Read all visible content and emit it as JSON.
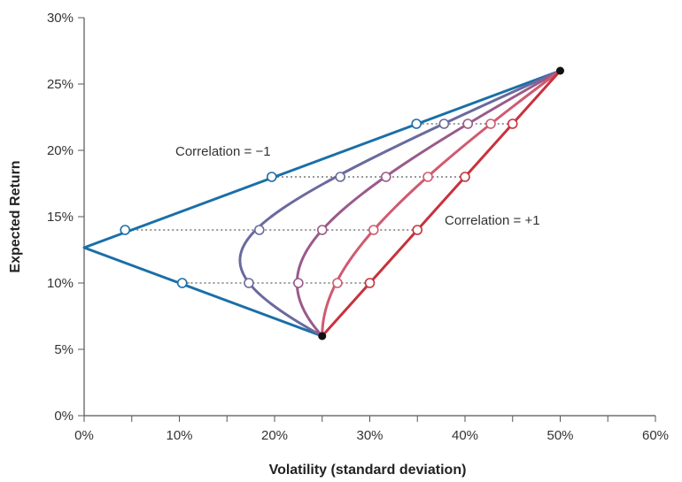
{
  "chart_data": {
    "type": "line",
    "xlabel": "Volatility (standard deviation)",
    "ylabel": "Expected Return",
    "xlim": [
      0,
      60
    ],
    "ylim": [
      0,
      30
    ],
    "x_ticks": [
      0,
      10,
      20,
      30,
      40,
      50,
      60
    ],
    "y_ticks": [
      0,
      5,
      10,
      15,
      20,
      25,
      30
    ],
    "x_tick_labels": [
      "0%",
      "10%",
      "20%",
      "30%",
      "40%",
      "50%",
      "60%"
    ],
    "y_tick_labels": [
      "0%",
      "5%",
      "10%",
      "15%",
      "20%",
      "25%",
      "30%"
    ],
    "grid": false,
    "endpoints": [
      {
        "x": 25,
        "y": 6
      },
      {
        "x": 50,
        "y": 26
      }
    ],
    "series": [
      {
        "correlation": -1,
        "color": "#1a6fa8",
        "points": [
          {
            "x": 25,
            "y": 6
          },
          {
            "x": 0,
            "y": 12.857
          },
          {
            "x": 50,
            "y": 26
          }
        ],
        "markers": [
          {
            "x": 10.3,
            "y": 10
          },
          {
            "x": 4.3,
            "y": 14
          },
          {
            "x": 19.7,
            "y": 18
          },
          {
            "x": 34.9,
            "y": 22
          }
        ]
      },
      {
        "correlation": -0.5,
        "color": "#6a6a9e",
        "markers": [
          {
            "x": 17.3,
            "y": 10
          },
          {
            "x": 18.4,
            "y": 14
          },
          {
            "x": 26.9,
            "y": 18
          },
          {
            "x": 37.8,
            "y": 22
          }
        ]
      },
      {
        "correlation": 0,
        "color": "#9a5a8a",
        "markers": [
          {
            "x": 22.5,
            "y": 10
          },
          {
            "x": 25.0,
            "y": 14
          },
          {
            "x": 31.7,
            "y": 18
          },
          {
            "x": 40.3,
            "y": 22
          }
        ]
      },
      {
        "correlation": 0.5,
        "color": "#d05a70",
        "markers": [
          {
            "x": 26.6,
            "y": 10
          },
          {
            "x": 30.4,
            "y": 14
          },
          {
            "x": 36.1,
            "y": 18
          },
          {
            "x": 42.7,
            "y": 22
          }
        ]
      },
      {
        "correlation": 1,
        "color": "#c8323c",
        "points": [
          {
            "x": 25,
            "y": 6
          },
          {
            "x": 50,
            "y": 26
          }
        ],
        "markers": [
          {
            "x": 30,
            "y": 10
          },
          {
            "x": 35,
            "y": 14
          },
          {
            "x": 40,
            "y": 18
          },
          {
            "x": 45,
            "y": 22
          }
        ]
      }
    ],
    "arrows": [
      {
        "from_x": 45,
        "to_x": 34.9,
        "y": 22
      },
      {
        "from_x": 40,
        "to_x": 19.7,
        "y": 18
      },
      {
        "from_x": 35,
        "to_x": 4.3,
        "y": 14
      },
      {
        "from_x": 30,
        "to_x": 10.3,
        "y": 10
      }
    ],
    "annotations": [
      {
        "text": "Correlation = −1",
        "near": "upper-left"
      },
      {
        "text": "Correlation = +1",
        "near": "right"
      }
    ]
  },
  "colors": {
    "axis": "#555555",
    "arrow": "#999999",
    "endpoint": "#111111",
    "marker_fill": "#ffffff"
  }
}
